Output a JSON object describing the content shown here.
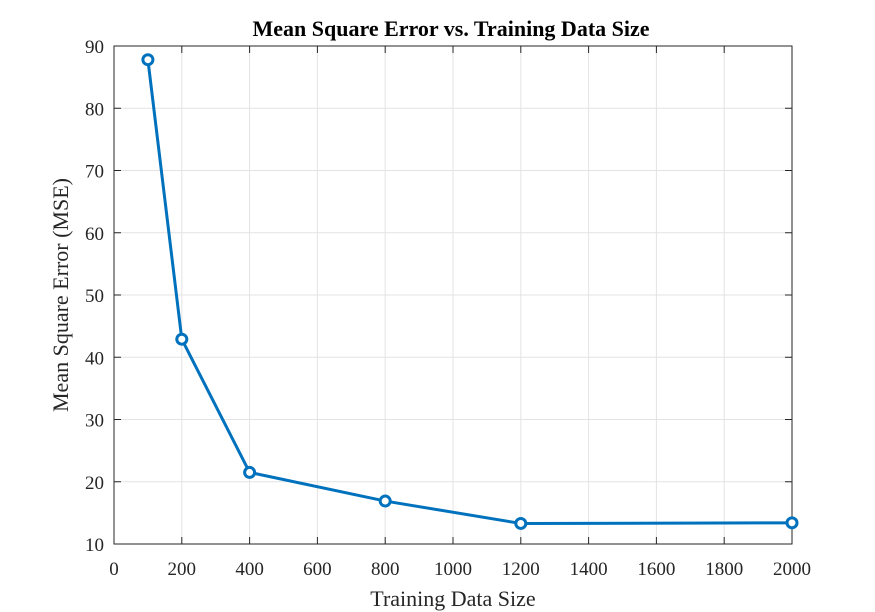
{
  "chart_data": {
    "type": "line",
    "title": "Mean Square Error vs. Training Data Size",
    "xlabel": "Training Data Size",
    "ylabel": "Mean Square Error (MSE)",
    "xlim": [
      0,
      2000
    ],
    "ylim": [
      10,
      90
    ],
    "xticks": [
      0,
      200,
      400,
      600,
      800,
      1000,
      1200,
      1400,
      1600,
      1800,
      2000
    ],
    "yticks": [
      10,
      20,
      30,
      40,
      50,
      60,
      70,
      80,
      90
    ],
    "grid": true,
    "line_color": "#0072bd",
    "marker": "circle",
    "series": [
      {
        "x": [
          100,
          200,
          400,
          800,
          1200,
          2000
        ],
        "y": [
          87.8,
          42.9,
          21.5,
          16.9,
          13.3,
          13.4
        ]
      }
    ]
  }
}
